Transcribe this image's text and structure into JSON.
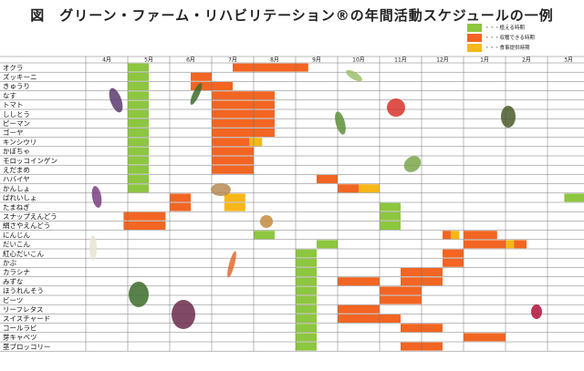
{
  "title": "図　グリーン・ファーム・リハビリテーション®の年間活動スケジュールの一例",
  "colors": {
    "plant": "#8dc63f",
    "harvest": "#f26522",
    "serve": "#f7b718",
    "grid": "#777777"
  },
  "legend": [
    {
      "label": "・・・植える時期",
      "kind": "plant"
    },
    {
      "label": "・・・収穫できる時期",
      "kind": "harvest"
    },
    {
      "label": "・・・食事提供時期",
      "kind": "serve"
    }
  ],
  "months": [
    "4月",
    "5月",
    "6月",
    "7月",
    "8月",
    "9月",
    "10月",
    "11月",
    "12月",
    "1月",
    "2月",
    "3月"
  ],
  "rows": [
    {
      "name": "オクラ",
      "bars": [
        {
          "kind": "plant",
          "s": 1,
          "e": 1.5
        },
        {
          "kind": "harvest",
          "s": 3.5,
          "e": 5.3
        }
      ]
    },
    {
      "name": "ズッキーニ",
      "bars": [
        {
          "kind": "plant",
          "s": 1,
          "e": 1.5
        },
        {
          "kind": "harvest",
          "s": 2.5,
          "e": 3
        }
      ]
    },
    {
      "name": "きゅうり",
      "bars": [
        {
          "kind": "plant",
          "s": 1,
          "e": 1.5
        },
        {
          "kind": "harvest",
          "s": 2.5,
          "e": 3.5
        }
      ]
    },
    {
      "name": "なす",
      "bars": [
        {
          "kind": "plant",
          "s": 1,
          "e": 1.5
        },
        {
          "kind": "harvest",
          "s": 3,
          "e": 4.5
        }
      ]
    },
    {
      "name": "トマト",
      "bars": [
        {
          "kind": "plant",
          "s": 1,
          "e": 1.5
        },
        {
          "kind": "harvest",
          "s": 3,
          "e": 4.5
        }
      ]
    },
    {
      "name": "ししとう",
      "bars": [
        {
          "kind": "plant",
          "s": 1,
          "e": 1.5
        },
        {
          "kind": "harvest",
          "s": 3,
          "e": 4.5
        }
      ]
    },
    {
      "name": "ピーマン",
      "bars": [
        {
          "kind": "plant",
          "s": 1,
          "e": 1.5
        },
        {
          "kind": "harvest",
          "s": 3,
          "e": 4.5
        }
      ]
    },
    {
      "name": "ゴーヤ",
      "bars": [
        {
          "kind": "plant",
          "s": 1,
          "e": 1.5
        },
        {
          "kind": "harvest",
          "s": 3,
          "e": 4.5
        }
      ]
    },
    {
      "name": "キンシウリ",
      "bars": [
        {
          "kind": "plant",
          "s": 1,
          "e": 1.5
        },
        {
          "kind": "harvest",
          "s": 3,
          "e": 3.9
        },
        {
          "kind": "serve",
          "s": 3.9,
          "e": 4.2
        }
      ]
    },
    {
      "name": "かぼちゃ",
      "bars": [
        {
          "kind": "plant",
          "s": 1,
          "e": 1.5
        },
        {
          "kind": "harvest",
          "s": 3,
          "e": 4
        }
      ]
    },
    {
      "name": "モロッコインゲン",
      "bars": [
        {
          "kind": "plant",
          "s": 1,
          "e": 1.5
        },
        {
          "kind": "harvest",
          "s": 3,
          "e": 4
        }
      ]
    },
    {
      "name": "えだまめ",
      "bars": [
        {
          "kind": "plant",
          "s": 1,
          "e": 1.5
        },
        {
          "kind": "harvest",
          "s": 3,
          "e": 4
        }
      ]
    },
    {
      "name": "ハバイヤ",
      "bars": [
        {
          "kind": "plant",
          "s": 1,
          "e": 1.5
        },
        {
          "kind": "harvest",
          "s": 5.5,
          "e": 6
        }
      ]
    },
    {
      "name": "かんしょ",
      "bars": [
        {
          "kind": "plant",
          "s": 1,
          "e": 1.5
        },
        {
          "kind": "harvest",
          "s": 6,
          "e": 6.5
        },
        {
          "kind": "serve",
          "s": 6.5,
          "e": 7
        }
      ]
    },
    {
      "name": "ばれいしょ",
      "bars": [
        {
          "kind": "harvest",
          "s": 2,
          "e": 2.5
        },
        {
          "kind": "serve",
          "s": 3.3,
          "e": 3.8
        },
        {
          "kind": "plant",
          "s": 11.4,
          "e": 11.9
        }
      ]
    },
    {
      "name": "たまねぎ",
      "bars": [
        {
          "kind": "harvest",
          "s": 2,
          "e": 2.5
        },
        {
          "kind": "serve",
          "s": 3.3,
          "e": 3.8
        },
        {
          "kind": "plant",
          "s": 7,
          "e": 7.5
        }
      ]
    },
    {
      "name": "スナップえんどう",
      "bars": [
        {
          "kind": "harvest",
          "s": 0.9,
          "e": 1.9
        },
        {
          "kind": "plant",
          "s": 7,
          "e": 7.5
        }
      ]
    },
    {
      "name": "絹さやえんどう",
      "bars": [
        {
          "kind": "harvest",
          "s": 0.9,
          "e": 1.9
        },
        {
          "kind": "plant",
          "s": 7,
          "e": 7.5
        }
      ]
    },
    {
      "name": "にんじん",
      "bars": [
        {
          "kind": "plant",
          "s": 4,
          "e": 4.5
        },
        {
          "kind": "harvest",
          "s": 8.5,
          "e": 8.7
        },
        {
          "kind": "serve",
          "s": 8.7,
          "e": 8.9
        },
        {
          "kind": "harvest",
          "s": 9,
          "e": 9.8
        }
      ]
    },
    {
      "name": "だいこん",
      "bars": [
        {
          "kind": "plant",
          "s": 5.5,
          "e": 6
        },
        {
          "kind": "harvest",
          "s": 9,
          "e": 10
        },
        {
          "kind": "serve",
          "s": 10,
          "e": 10.2
        },
        {
          "kind": "harvest",
          "s": 10.2,
          "e": 10.5
        }
      ]
    },
    {
      "name": "紅心だいこん",
      "bars": [
        {
          "kind": "plant",
          "s": 5,
          "e": 5.5
        },
        {
          "kind": "harvest",
          "s": 8.5,
          "e": 9
        }
      ]
    },
    {
      "name": "かぶ",
      "bars": [
        {
          "kind": "plant",
          "s": 5,
          "e": 5.5
        },
        {
          "kind": "harvest",
          "s": 8.5,
          "e": 9
        }
      ]
    },
    {
      "name": "カラシナ",
      "bars": [
        {
          "kind": "plant",
          "s": 5,
          "e": 5.5
        },
        {
          "kind": "harvest",
          "s": 7.5,
          "e": 8.5
        }
      ]
    },
    {
      "name": "みずな",
      "bars": [
        {
          "kind": "plant",
          "s": 5,
          "e": 5.5
        },
        {
          "kind": "harvest",
          "s": 6,
          "e": 7
        },
        {
          "kind": "harvest",
          "s": 7.5,
          "e": 8.5
        }
      ]
    },
    {
      "name": "ほうれんそう",
      "bars": [
        {
          "kind": "plant",
          "s": 5,
          "e": 5.5
        },
        {
          "kind": "harvest",
          "s": 7,
          "e": 8
        }
      ]
    },
    {
      "name": "ビーツ",
      "bars": [
        {
          "kind": "plant",
          "s": 5,
          "e": 5.5
        },
        {
          "kind": "harvest",
          "s": 7,
          "e": 8
        }
      ]
    },
    {
      "name": "リーフレタス",
      "bars": [
        {
          "kind": "plant",
          "s": 5,
          "e": 5.5
        },
        {
          "kind": "harvest",
          "s": 6,
          "e": 7
        }
      ]
    },
    {
      "name": "スイスチャード",
      "bars": [
        {
          "kind": "plant",
          "s": 5,
          "e": 5.5
        },
        {
          "kind": "harvest",
          "s": 6,
          "e": 7.5
        }
      ]
    },
    {
      "name": "コールラビ",
      "bars": [
        {
          "kind": "plant",
          "s": 5,
          "e": 5.5
        },
        {
          "kind": "harvest",
          "s": 7.5,
          "e": 8.5
        }
      ]
    },
    {
      "name": "芽キャベツ",
      "bars": [
        {
          "kind": "plant",
          "s": 5,
          "e": 5.5
        },
        {
          "kind": "harvest",
          "s": 9,
          "e": 10
        }
      ]
    },
    {
      "name": "茎ブロッコリー",
      "bars": [
        {
          "kind": "plant",
          "s": 5,
          "e": 5.5
        },
        {
          "kind": "harvest",
          "s": 7.5,
          "e": 8.5
        }
      ]
    }
  ],
  "illustrations": [
    {
      "name": "okra-illustration",
      "color": "#9bbf6a"
    },
    {
      "name": "zucchini-illustration",
      "color": "#3f6b2a"
    },
    {
      "name": "eggplant-illustration",
      "color": "#5b3a6e"
    },
    {
      "name": "tomato-illustration",
      "color": "#d6342b"
    },
    {
      "name": "goya-illustration",
      "color": "#5f8f3a"
    },
    {
      "name": "pepper-illustration",
      "color": "#4b5a2a"
    },
    {
      "name": "edamame-illustration",
      "color": "#7aa64a"
    },
    {
      "name": "sweet-potato-illustration",
      "color": "#7a3f7f"
    },
    {
      "name": "potato-illustration",
      "color": "#b58b55"
    },
    {
      "name": "onion-illustration",
      "color": "#c48a3e"
    },
    {
      "name": "radish-illustration",
      "color": "#e8e4d4"
    },
    {
      "name": "carrot-illustration",
      "color": "#e46a2b"
    },
    {
      "name": "spinach-illustration",
      "color": "#3c6b2a"
    },
    {
      "name": "chard-illustration",
      "color": "#6a2a4a"
    },
    {
      "name": "beet-illustration",
      "color": "#b0123a"
    }
  ]
}
